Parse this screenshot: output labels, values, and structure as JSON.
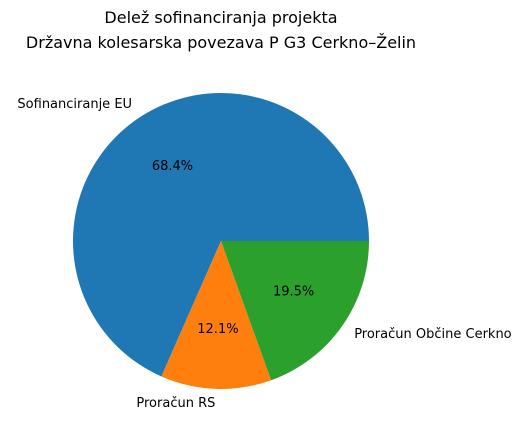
{
  "chart_data": {
    "type": "pie",
    "title_lines": [
      "Delež sofinanciranja projekta",
      "Državna kolesarska povezava P G3 Cerkno–Želin"
    ],
    "start_angle_deg": 0,
    "direction": "counterclockwise",
    "slices": [
      {
        "label": "Sofinanciranje EU",
        "value": 68.4,
        "pct_label": "68.4%",
        "color": "#1f77b4"
      },
      {
        "label": "Proračun RS",
        "value": 12.1,
        "pct_label": "12.1%",
        "color": "#ff7f0e"
      },
      {
        "label": "Proračun Občine Cerkno",
        "value": 19.5,
        "pct_label": "19.5%",
        "color": "#2ca02c"
      }
    ]
  }
}
